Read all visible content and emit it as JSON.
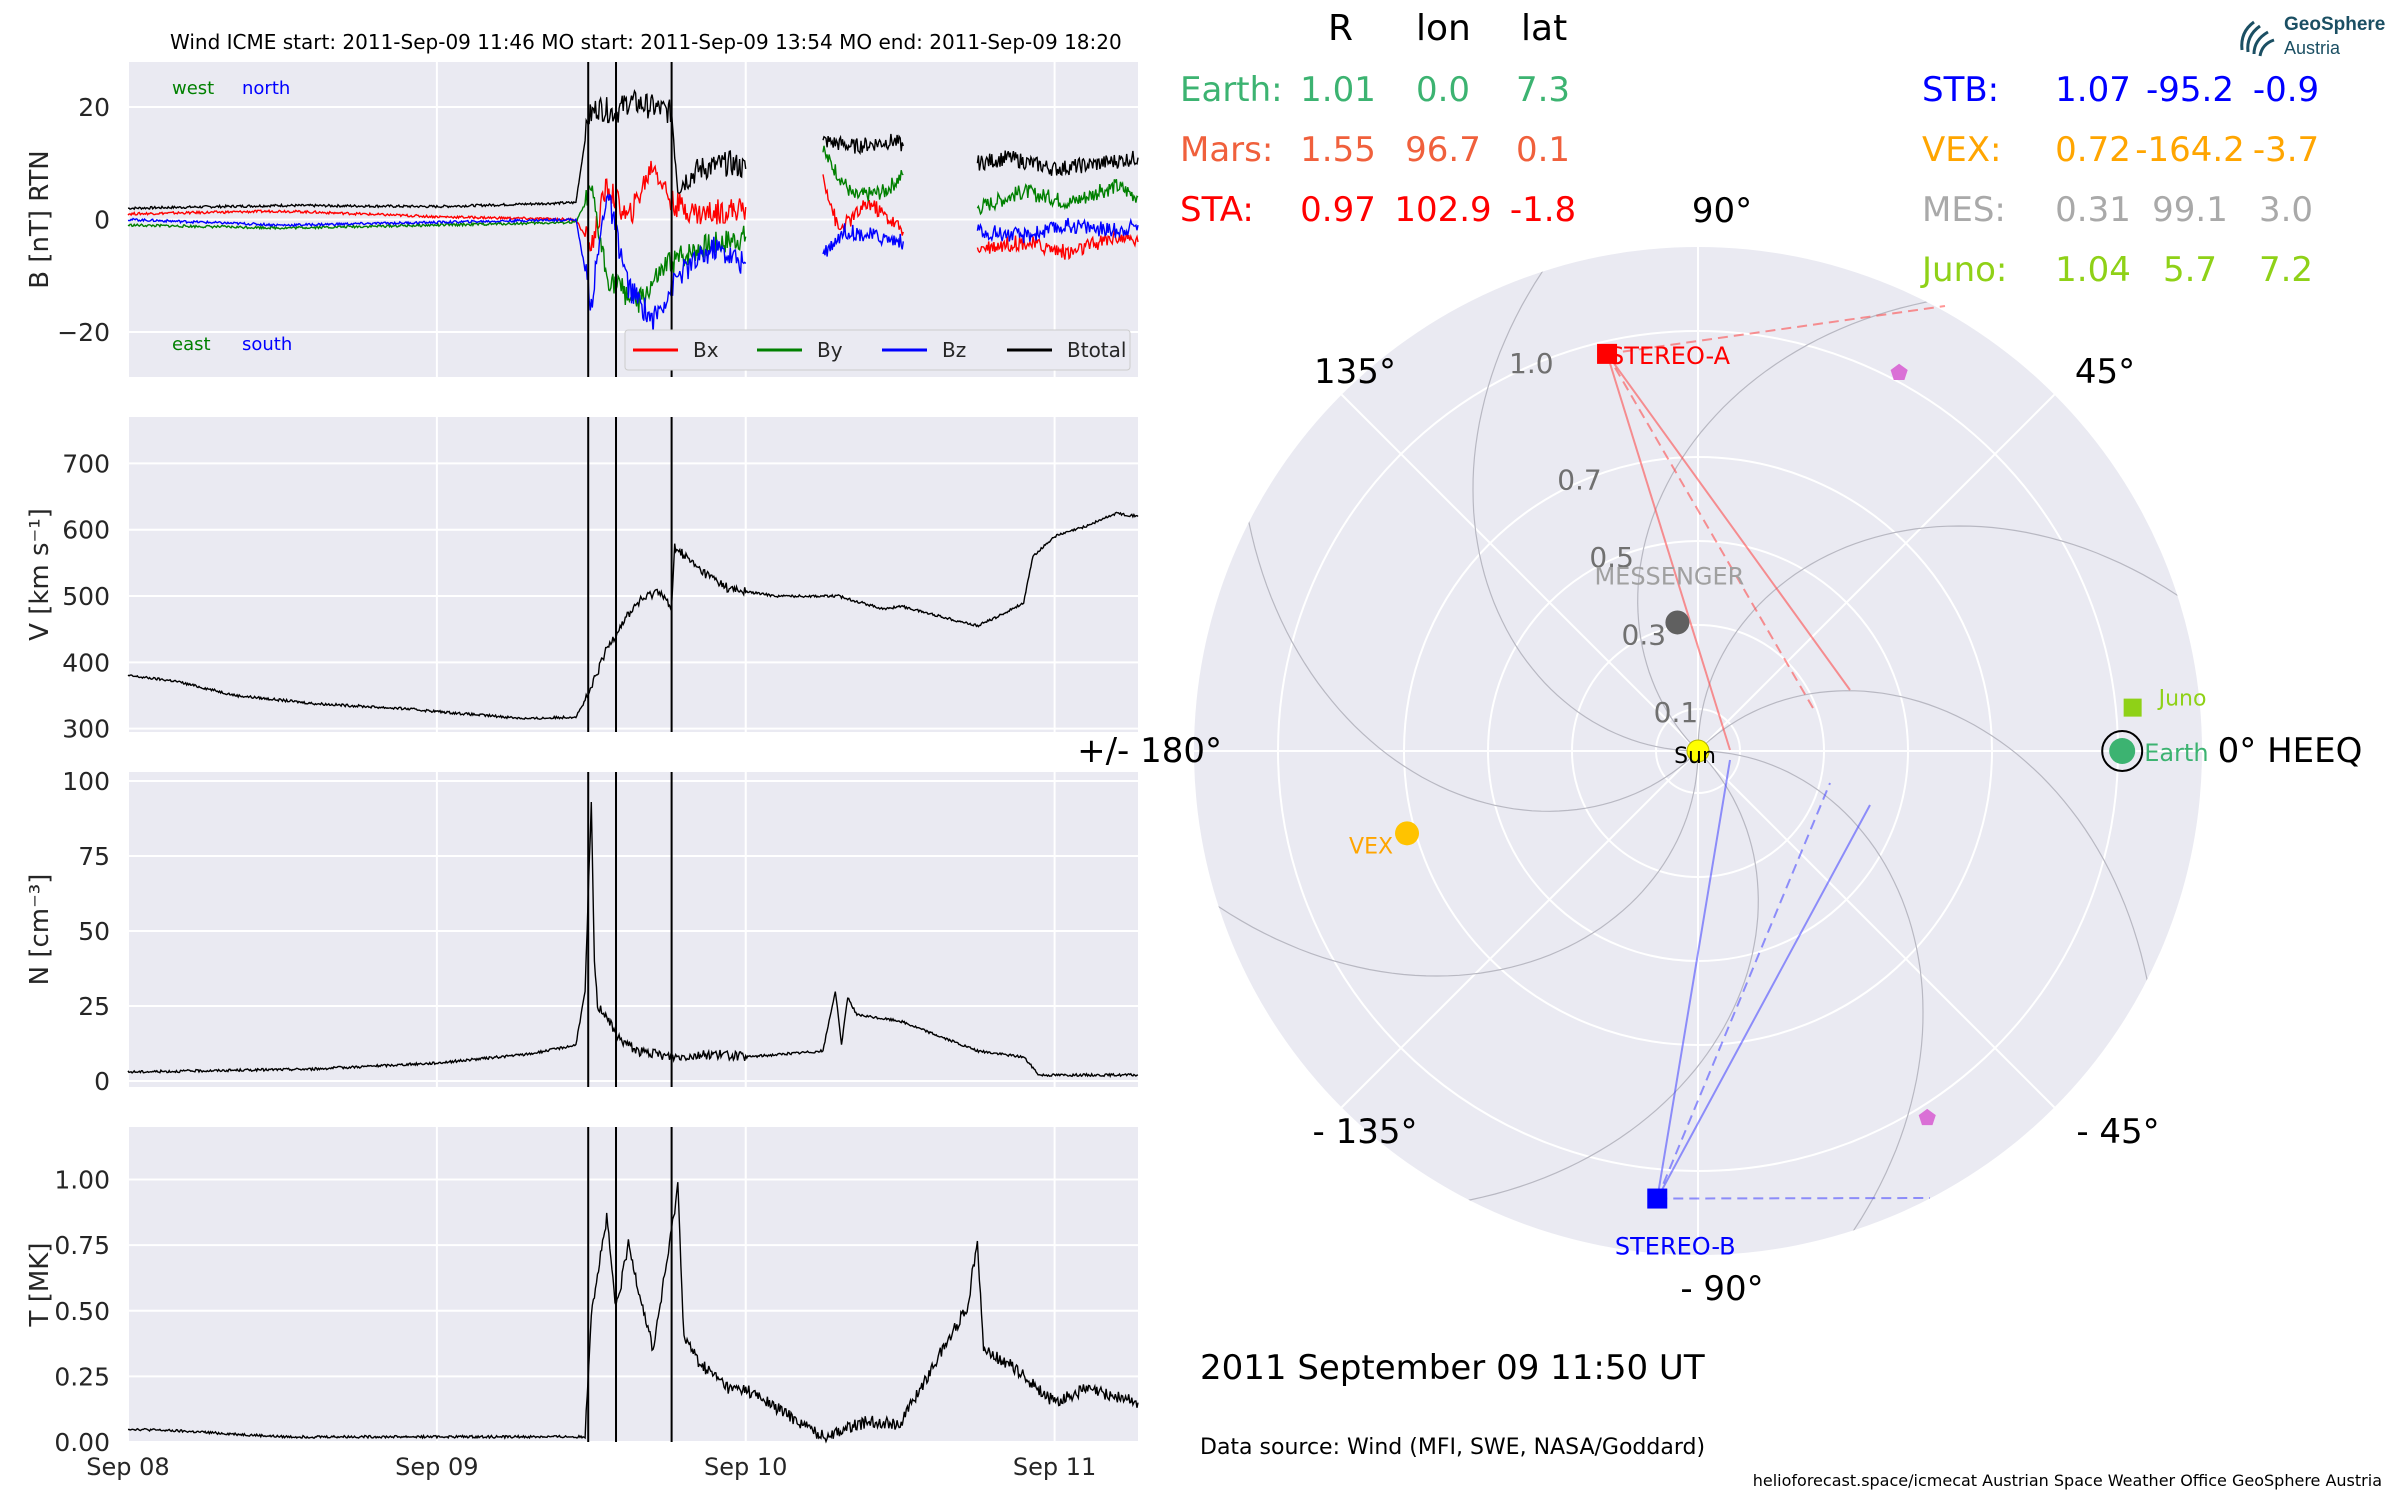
{
  "header": {
    "title": "Wind    ICME start: 2011-Sep-09 11:46   MO start: 2011-Sep-09 13:54   MO end: 2011-Sep-09 18:20"
  },
  "position_table": {
    "columns": [
      "R",
      "lon",
      "lat"
    ],
    "left_rows": [
      {
        "label": "Earth:",
        "r": "1.01",
        "lon": "0.0",
        "lat": "7.3",
        "color": "#3cb371"
      },
      {
        "label": "Mars:",
        "r": "1.55",
        "lon": "96.7",
        "lat": "0.1",
        "color": "#f0603c"
      },
      {
        "label": "STA:",
        "r": "0.97",
        "lon": "102.9",
        "lat": "-1.8",
        "color": "#ff0000"
      }
    ],
    "right_rows": [
      {
        "label": "STB:",
        "r": "1.07",
        "lon": "-95.2",
        "lat": "-0.9",
        "color": "#0000ff"
      },
      {
        "label": "VEX:",
        "r": "0.72",
        "lon": "-164.2",
        "lat": "-3.7",
        "color": "#ffa500"
      },
      {
        "label": "MES:",
        "r": "0.31",
        "lon": "99.1",
        "lat": "3.0",
        "color": "#a9a9a9"
      },
      {
        "label": "Juno:",
        "r": "1.04",
        "lon": "5.7",
        "lat": "7.2",
        "color": "#8fd117"
      }
    ]
  },
  "logo": {
    "line1": "GeoSphere",
    "line2": "Austria"
  },
  "timestamp": "2011 September 09  11:50 UT",
  "data_source": "Data source: Wind (MFI, SWE, NASA/Goddard)",
  "footer": "helioforecast.space/icmecat   Austrian Space Weather Office   GeoSphere Austria",
  "colors": {
    "bx": "#ff0000",
    "by": "#008000",
    "bz": "#0000ff",
    "btotal": "#000000",
    "panel_bg": "#eaeaf2"
  },
  "chart_data": [
    {
      "type": "line",
      "ylabel": "B [nT] RTN",
      "ylim": [
        -28,
        28
      ],
      "yticks": [
        -20,
        0,
        20
      ],
      "ytick_labels": [
        "−20",
        "0",
        "20"
      ],
      "x_days": [
        0,
        1,
        2,
        3,
        3.27
      ],
      "xtick_labels": [
        "Sep 08",
        "Sep 09",
        "Sep 10",
        "Sep 11"
      ],
      "event_lines": [
        "2011-09-09 11:46",
        "2011-09-09 13:54",
        "2011-09-09 18:20"
      ],
      "event_lines_days": [
        1.49,
        1.58,
        1.76
      ],
      "annotations": {
        "top_left": [
          "west",
          "north"
        ],
        "bottom_left": [
          "east",
          "south"
        ]
      },
      "legend": [
        "Bx",
        "By",
        "Bz",
        "Btotal"
      ],
      "data_gaps_days": [
        [
          2.0,
          2.25
        ],
        [
          2.51,
          2.75
        ]
      ],
      "series": [
        {
          "name": "Btotal",
          "x": [
            0,
            0.5,
            1.0,
            1.45,
            1.49,
            1.52,
            1.58,
            1.62,
            1.7,
            1.76,
            1.78,
            1.85,
            1.95,
            2.0,
            2.25,
            2.35,
            2.48,
            2.51,
            2.75,
            2.85,
            3.0,
            3.15,
            3.27
          ],
          "y": [
            2,
            2.5,
            2.3,
            3,
            18,
            20,
            19,
            21,
            20,
            19,
            6,
            9,
            10,
            9,
            14,
            13,
            14,
            13,
            10,
            11,
            9,
            10,
            11
          ]
        },
        {
          "name": "Bx",
          "x": [
            0,
            0.5,
            1.0,
            1.45,
            1.5,
            1.55,
            1.62,
            1.7,
            1.76,
            1.85,
            2.0,
            2.25,
            2.3,
            2.4,
            2.51,
            2.75,
            2.9,
            3.05,
            3.2,
            3.27
          ],
          "y": [
            1,
            1.5,
            0.5,
            0,
            -5,
            6,
            0,
            10,
            3,
            1,
            2,
            8,
            -2,
            3,
            -2,
            -5,
            -4,
            -6,
            -3,
            -4
          ]
        },
        {
          "name": "By",
          "x": [
            0,
            0.5,
            1.0,
            1.45,
            1.5,
            1.55,
            1.65,
            1.75,
            1.85,
            2.0,
            2.25,
            2.35,
            2.45,
            2.51,
            2.75,
            2.9,
            3.05,
            3.2,
            3.27
          ],
          "y": [
            -1,
            -1.5,
            -1,
            -0.5,
            5,
            -10,
            -15,
            -8,
            -5,
            -3,
            12,
            4,
            5,
            8,
            2,
            5,
            3,
            6,
            4
          ]
        },
        {
          "name": "Bz",
          "x": [
            0,
            0.5,
            1.0,
            1.45,
            1.5,
            1.55,
            1.62,
            1.7,
            1.78,
            1.9,
            2.0,
            2.25,
            2.32,
            2.42,
            2.51,
            2.75,
            2.9,
            3.05,
            3.2,
            3.27
          ],
          "y": [
            0,
            -1,
            -0.5,
            0,
            -15,
            5,
            -12,
            -18,
            -10,
            -5,
            -8,
            -6,
            -2,
            -3,
            -4,
            -2,
            -3,
            -1,
            -2,
            -1
          ]
        }
      ]
    },
    {
      "type": "line",
      "ylabel": "V [km s⁻¹]",
      "ylim": [
        295,
        770
      ],
      "yticks": [
        300,
        400,
        500,
        600,
        700
      ],
      "x_days": [
        0,
        1,
        2,
        3,
        3.27
      ],
      "xtick_labels": [
        "Sep 08",
        "Sep 09",
        "Sep 10",
        "Sep 11"
      ],
      "event_lines_days": [
        1.49,
        1.58,
        1.76
      ],
      "series": [
        {
          "name": "V",
          "x": [
            0,
            0.15,
            0.35,
            0.6,
            0.9,
            1.1,
            1.3,
            1.45,
            1.49,
            1.55,
            1.6,
            1.65,
            1.72,
            1.76,
            1.77,
            1.85,
            1.95,
            2.1,
            2.3,
            2.45,
            2.5,
            2.75,
            2.82,
            2.9,
            2.93,
            3.0,
            3.1,
            3.2,
            3.27
          ],
          "y": [
            380,
            372,
            350,
            338,
            330,
            322,
            315,
            318,
            350,
            420,
            460,
            490,
            510,
            480,
            575,
            540,
            510,
            500,
            500,
            480,
            485,
            455,
            470,
            490,
            560,
            590,
            605,
            625,
            620
          ]
        }
      ]
    },
    {
      "type": "line",
      "ylabel": "N [cm⁻³]",
      "ylim": [
        -2,
        103
      ],
      "yticks": [
        0,
        25,
        50,
        75,
        100
      ],
      "x_days": [
        0,
        1,
        2,
        3,
        3.27
      ],
      "xtick_labels": [
        "Sep 08",
        "Sep 09",
        "Sep 10",
        "Sep 11"
      ],
      "event_lines_days": [
        1.49,
        1.58,
        1.76
      ],
      "series": [
        {
          "name": "N",
          "x": [
            0,
            0.3,
            0.6,
            1.0,
            1.3,
            1.45,
            1.48,
            1.5,
            1.51,
            1.52,
            1.55,
            1.58,
            1.65,
            1.76,
            1.9,
            2.0,
            2.25,
            2.29,
            2.31,
            2.33,
            2.36,
            2.5,
            2.75,
            2.9,
            2.95,
            3.1,
            3.27
          ],
          "y": [
            3,
            3.5,
            4,
            6,
            9,
            12,
            30,
            92,
            40,
            25,
            22,
            15,
            10,
            8,
            9,
            8,
            10,
            30,
            12,
            28,
            22,
            20,
            10,
            8,
            2,
            2,
            2
          ]
        }
      ]
    },
    {
      "type": "line",
      "ylabel": "T [MK]",
      "ylim": [
        0,
        1.2
      ],
      "yticks": [
        0.0,
        0.25,
        0.5,
        0.75,
        1.0
      ],
      "ytick_labels": [
        "0.00",
        "0.25",
        "0.50",
        "0.75",
        "1.00"
      ],
      "x_days": [
        0,
        1,
        2,
        3,
        3.27
      ],
      "xtick_labels": [
        "Sep 08",
        "Sep 09",
        "Sep 10",
        "Sep 11"
      ],
      "event_lines_days": [
        1.49,
        1.58,
        1.76
      ],
      "series": [
        {
          "name": "T",
          "x": [
            0,
            0.2,
            0.5,
            1.0,
            1.3,
            1.48,
            1.5,
            1.55,
            1.58,
            1.62,
            1.66,
            1.7,
            1.76,
            1.78,
            1.8,
            1.85,
            1.95,
            2.0,
            2.25,
            2.4,
            2.5,
            2.72,
            2.75,
            2.77,
            2.85,
            3.0,
            3.1,
            3.27
          ],
          "y": [
            0.05,
            0.04,
            0.02,
            0.02,
            0.02,
            0.02,
            0.5,
            0.85,
            0.5,
            0.75,
            0.55,
            0.35,
            0.8,
            0.98,
            0.4,
            0.3,
            0.2,
            0.2,
            0.02,
            0.08,
            0.07,
            0.52,
            0.78,
            0.35,
            0.3,
            0.15,
            0.2,
            0.15
          ]
        }
      ]
    },
    {
      "type": "scatter",
      "subtype": "polar",
      "angle_labels": [
        {
          "text": "0° HEEQ",
          "deg": 0
        },
        {
          "text": "45°",
          "deg": 45
        },
        {
          "text": "90°",
          "deg": 90
        },
        {
          "text": "135°",
          "deg": 135
        },
        {
          "text": "+/- 180°",
          "deg": 180
        },
        {
          "text": "- 135°",
          "deg": -135
        },
        {
          "text": "- 90°",
          "deg": -90
        },
        {
          "text": "- 45°",
          "deg": -45
        }
      ],
      "radial_ticks": [
        "0.1",
        "0.3",
        "0.5",
        "0.7",
        "1.0"
      ],
      "radial_tick_values": [
        0.1,
        0.3,
        0.5,
        0.7,
        1.0
      ],
      "r_max": 1.2,
      "bodies": [
        {
          "name": "Sun",
          "label": "Sun",
          "r": 0.0,
          "lon": 0,
          "marker": "circle",
          "color": "#ffff00"
        },
        {
          "name": "Earth",
          "label": "Earth",
          "r": 1.01,
          "lon": 0.0,
          "marker": "circle",
          "color": "#3cb371"
        },
        {
          "name": "Juno",
          "label": "Juno",
          "r": 1.04,
          "lon": 5.7,
          "marker": "square",
          "color": "#8fd117"
        },
        {
          "name": "STEREO-A",
          "label": "STEREO-A",
          "r": 0.97,
          "lon": 102.9,
          "marker": "square",
          "color": "#ff0000"
        },
        {
          "name": "STEREO-B",
          "label": "STEREO-B",
          "r": 1.07,
          "lon": -95.2,
          "marker": "square",
          "color": "#0000ff"
        },
        {
          "name": "MESSENGER",
          "label": "MESSENGER",
          "r": 0.31,
          "lon": 99.1,
          "marker": "circle",
          "color": "#606060"
        },
        {
          "name": "VEX",
          "label": "VEX",
          "r": 0.72,
          "lon": -164.2,
          "marker": "circle",
          "color": "#ffc300"
        },
        {
          "name": "Mars",
          "label": "",
          "r": 1.55,
          "lon": 96.7,
          "marker": "none",
          "color": "#f0603c"
        },
        {
          "name": "PSP",
          "label": "",
          "r": 1.02,
          "lon": 62,
          "marker": "pentagon",
          "color": "#da70d6"
        },
        {
          "name": "Solo",
          "label": "",
          "r": 1.03,
          "lon": -58,
          "marker": "pentagon",
          "color": "#da70d6"
        }
      ]
    }
  ]
}
